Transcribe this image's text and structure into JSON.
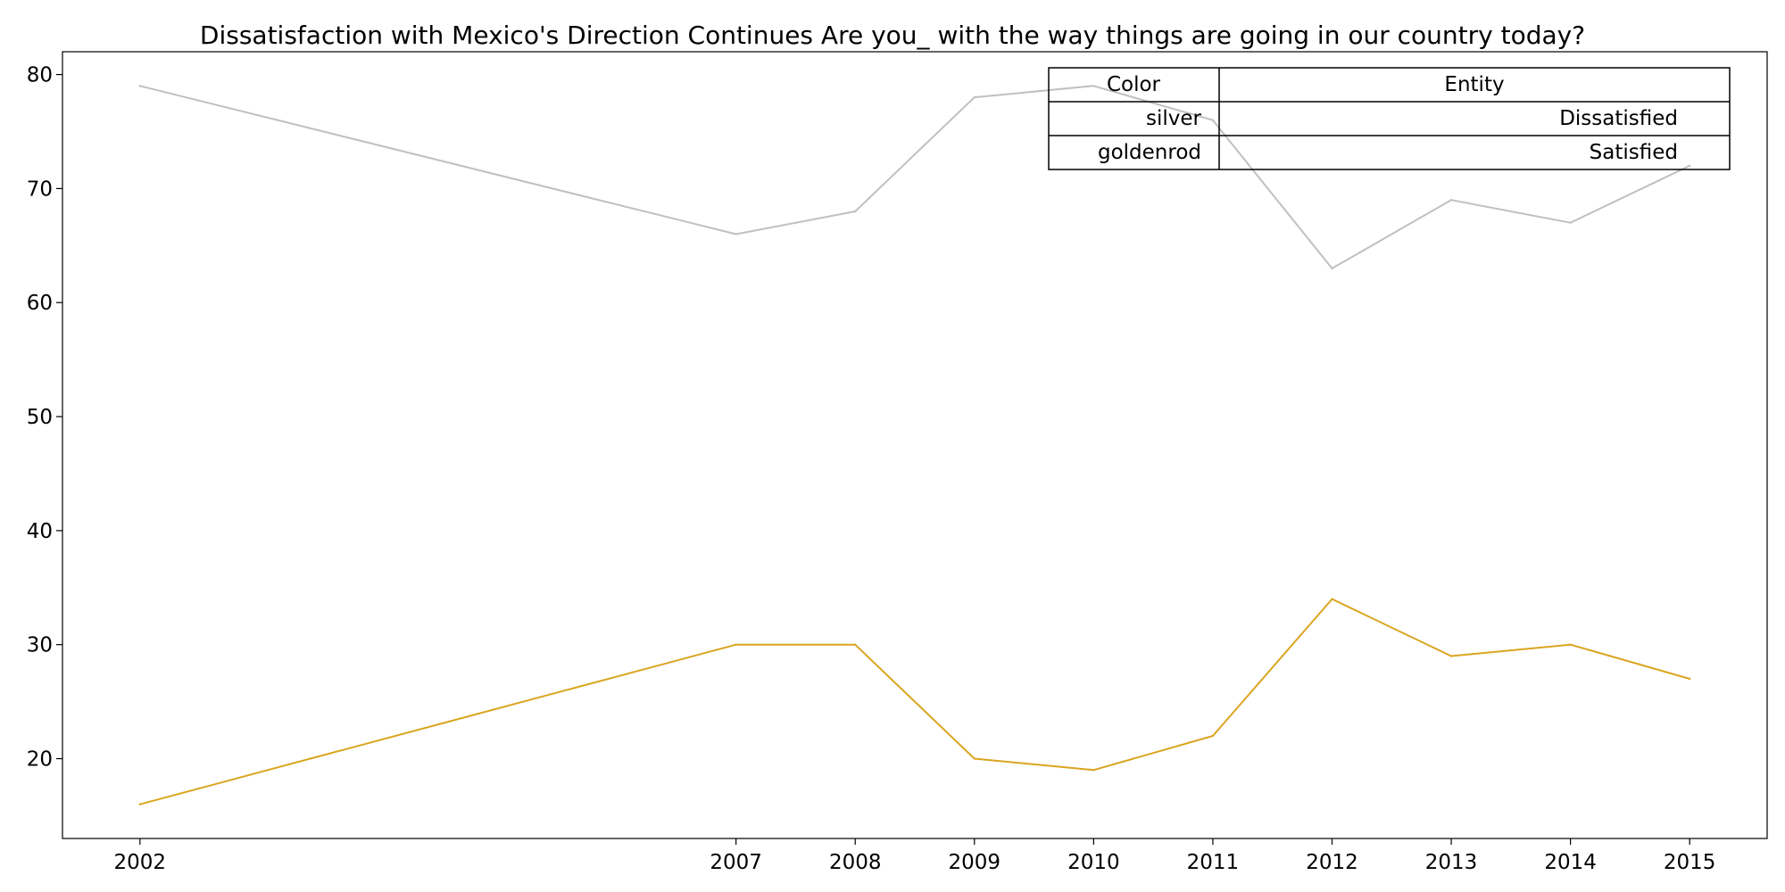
{
  "chart_data": {
    "type": "line",
    "title": "Dissatisfaction with Mexico's Direction Continues Are you_ with the way things are going in our country today?",
    "xlabel": "",
    "ylabel": "",
    "x": [
      2002,
      2007,
      2008,
      2009,
      2010,
      2011,
      2012,
      2013,
      2014,
      2015
    ],
    "x_tick_labels": [
      "2002",
      "2007",
      "2008",
      "2009",
      "2010",
      "2011",
      "2012",
      "2013",
      "2014",
      "2015"
    ],
    "y_ticks": [
      20,
      30,
      40,
      50,
      60,
      70,
      80
    ],
    "y_tick_labels": [
      "20",
      "30",
      "40",
      "50",
      "60",
      "70",
      "80"
    ],
    "xlim": [
      2001.35,
      2015.65
    ],
    "ylim": [
      13.0,
      82.0
    ],
    "grid": false,
    "legend_placement": "top-right",
    "series": [
      {
        "key": "dissatisfied",
        "color": "#c0c0c0",
        "values": [
          79,
          66,
          68,
          78,
          79,
          76,
          63,
          69,
          67,
          72
        ]
      },
      {
        "key": "satisfied",
        "color": "#daa520",
        "values": [
          16,
          30,
          30,
          20,
          19,
          22,
          34,
          29,
          30,
          27
        ]
      }
    ],
    "legend_table": {
      "headers": [
        "Color",
        "Entity"
      ],
      "rows": [
        {
          "color": "silver",
          "entity": "Dissatisfied"
        },
        {
          "color": "goldenrod",
          "entity": "Satisfied"
        }
      ]
    }
  }
}
